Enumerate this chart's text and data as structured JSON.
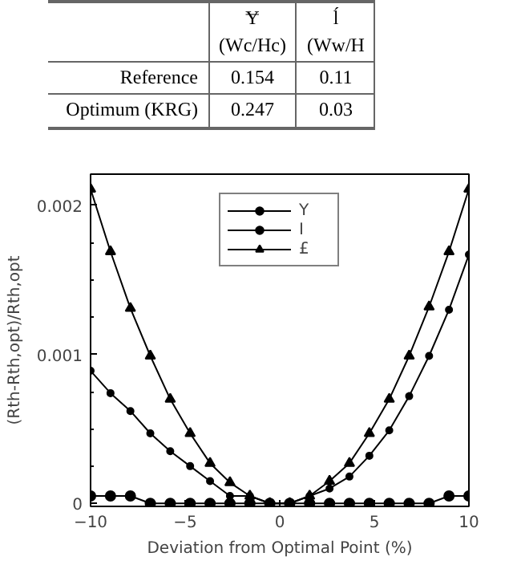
{
  "chart_data": {
    "type": "line",
    "xlabel": "Deviation from Optimal Point (%)",
    "ylabel": "(Rth-Rth,opt)/Rth,opt",
    "annotations": [
      "Ɏ",
      "(Wc/Hc)",
      "ĺ",
      "(Ww/H",
      "Reference",
      "0.154",
      "0.11",
      "Optimum (KRG)",
      "0.247",
      "0.03"
    ],
    "x": [
      -10,
      -8.947,
      -7.895,
      -6.842,
      -5.789,
      -4.737,
      -3.684,
      -2.632,
      -1.579,
      -0.526,
      0.526,
      1.579,
      2.632,
      3.684,
      4.737,
      5.789,
      6.842,
      7.895,
      8.947,
      10
    ],
    "series": [
      {
        "name": "Υ",
        "color": "#000000",
        "marker": "circle",
        "values": [
          0.00089,
          0.00074,
          0.00062,
          0.00047,
          0.00035,
          0.00025,
          0.00015,
          5e-05,
          5e-05,
          0,
          0,
          5e-05,
          0.0001,
          0.00018,
          0.00032,
          0.00049,
          0.00072,
          0.00099,
          0.0013,
          0.00167
        ]
      },
      {
        "name": "Ι",
        "color": "#000000",
        "marker": "circle",
        "values": [
          5e-05,
          5e-05,
          5e-05,
          0,
          0,
          0,
          0,
          0,
          0,
          0,
          0,
          0,
          0,
          0,
          0,
          0,
          0,
          0,
          5e-05,
          5e-05
        ]
      },
      {
        "name": "£",
        "color": "#000000",
        "marker": "triangle",
        "values": [
          0.00211,
          0.00169,
          0.00131,
          0.00099,
          0.0007,
          0.00047,
          0.00027,
          0.00014,
          5e-05,
          0,
          0,
          5e-05,
          0.00015,
          0.00027,
          0.00047,
          0.0007,
          0.00099,
          0.00132,
          0.00169,
          0.00211
        ]
      }
    ],
    "xlim": [
      -10,
      10
    ],
    "xticks": [
      -10,
      -5,
      0,
      5,
      10
    ],
    "ylim": [
      -2e-05,
      0.00221
    ],
    "yticks": [
      {
        "value": 0,
        "label": "0"
      },
      {
        "value": 0.00025,
        "label": null
      },
      {
        "value": 0.0005,
        "label": null
      },
      {
        "value": 0.00075,
        "label": null
      },
      {
        "value": 0.001,
        "label": "0.001"
      },
      {
        "value": 0.00125,
        "label": null
      },
      {
        "value": 0.0015,
        "label": null
      },
      {
        "value": 0.00175,
        "label": null
      },
      {
        "value": 0.002,
        "label": "0.002"
      }
    ],
    "legend": "top",
    "line_style": "solid",
    "grid": false
  }
}
